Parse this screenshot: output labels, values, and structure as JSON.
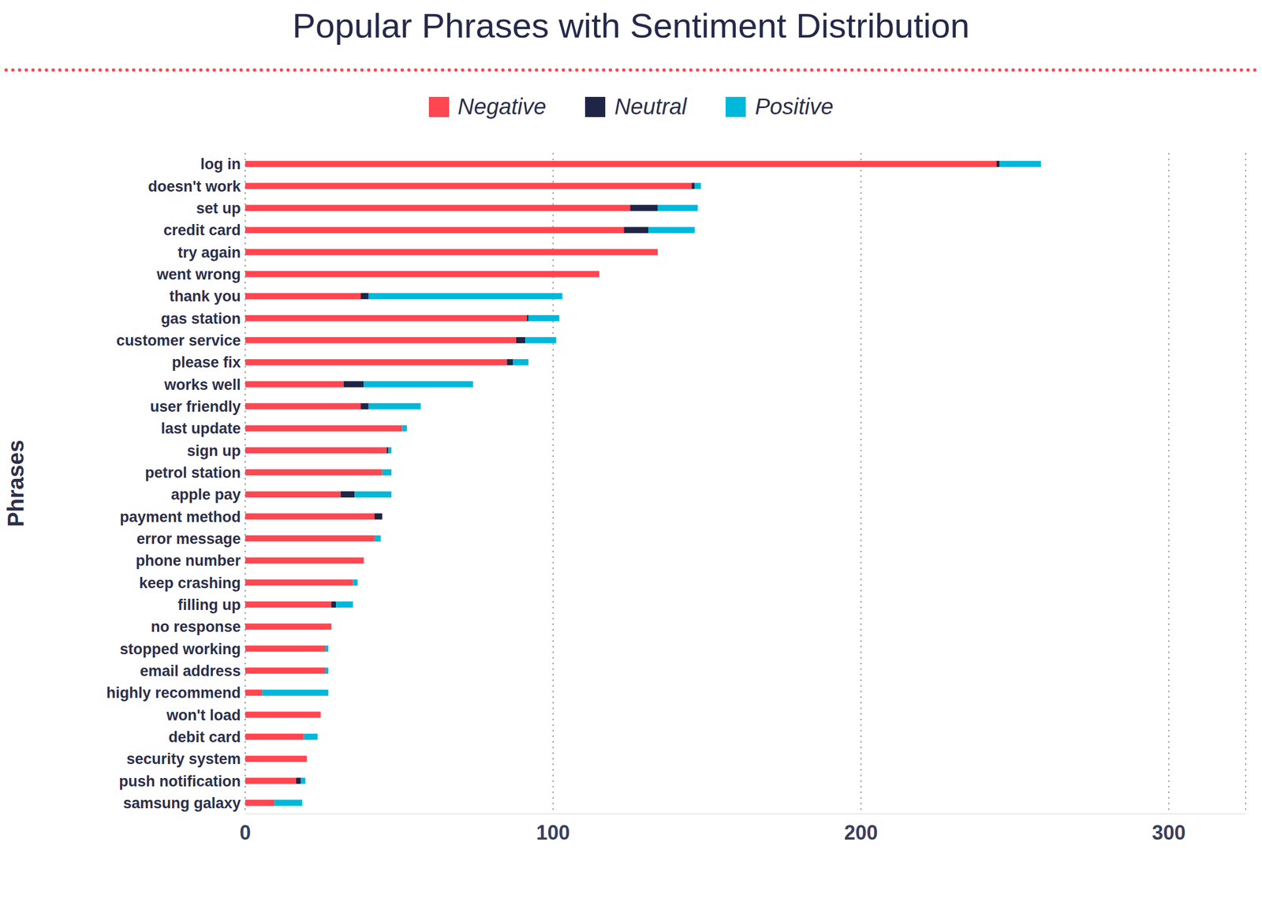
{
  "chart_data": {
    "type": "bar",
    "title": "Popular Phrases with Sentiment Distribution",
    "y_label": "Phrases",
    "orientation": "horizontal",
    "stacked": true,
    "grid": true,
    "legend": "top",
    "categories": [
      "log in",
      "doesn't work",
      "set up",
      "credit card",
      "try again",
      "went wrong",
      "thank you",
      "gas station",
      "customer service",
      "please fix",
      "works well",
      "user friendly",
      "last update",
      "sign up",
      "petrol station",
      "apple pay",
      "payment method",
      "error message",
      "phone number",
      "keep crashing",
      "filling up",
      "no response",
      "stopped working",
      "email address",
      "highly recommend",
      "won't load",
      "debit card",
      "security system",
      "push notification",
      "samsung galaxy"
    ],
    "series": [
      {
        "name": "Negative",
        "color": "#ff4651",
        "values": [
          244,
          145,
          125,
          123,
          134,
          115,
          37.5,
          91.5,
          88,
          85,
          32,
          37.5,
          51,
          46,
          44.5,
          31,
          42,
          42,
          38.5,
          35,
          28,
          28,
          26,
          26,
          5.5,
          24.5,
          19,
          20,
          16.5,
          9.5
        ]
      },
      {
        "name": "Neutral",
        "color": "#1f2544",
        "values": [
          1,
          1,
          9,
          8,
          0,
          0,
          2.5,
          0.5,
          3,
          2,
          6.5,
          2.5,
          0,
          0.5,
          0,
          4.5,
          2.5,
          0,
          0,
          0,
          1.5,
          0,
          0,
          0,
          0,
          0,
          0,
          0,
          1.5,
          0
        ]
      },
      {
        "name": "Positive",
        "color": "#00b8d9",
        "values": [
          13.5,
          2,
          13,
          15,
          0,
          0,
          63,
          10,
          10,
          5,
          35.5,
          17,
          1.5,
          1,
          3,
          12,
          0,
          2,
          0,
          1.5,
          5.5,
          0,
          1,
          1,
          21.5,
          0,
          4.5,
          0,
          1.5,
          9
        ]
      }
    ],
    "xlim": [
      0,
      325
    ],
    "xticks": [
      0,
      100,
      200,
      300
    ]
  }
}
